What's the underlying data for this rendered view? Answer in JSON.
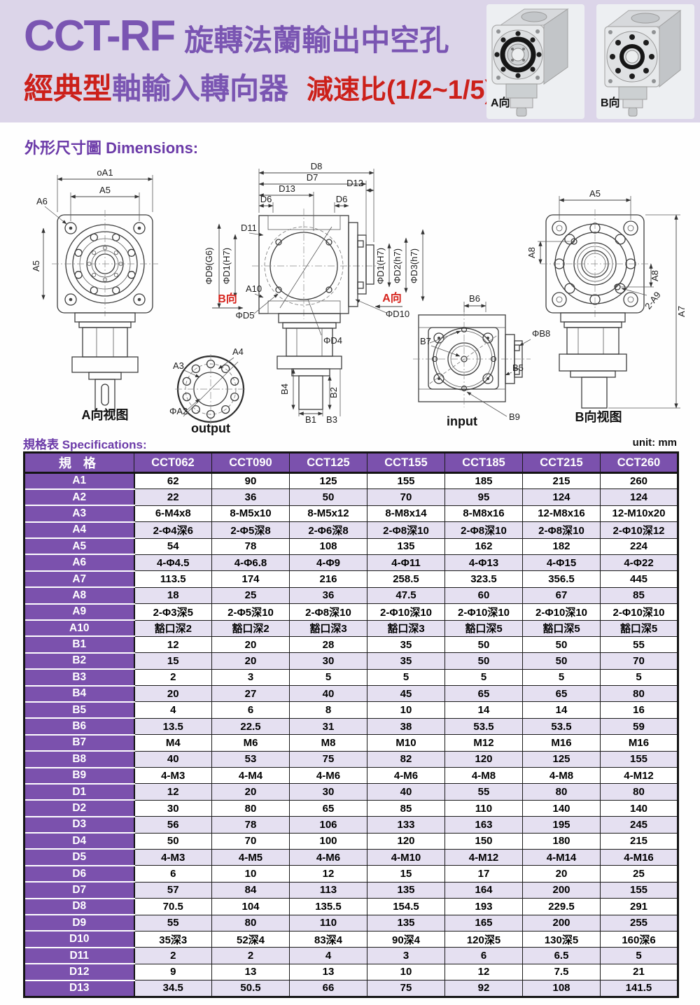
{
  "colors": {
    "band_bg": "#dcd5e9",
    "purple": "#7a55b2",
    "red": "#cc201a",
    "table_header": "#7b51ad",
    "row_alt": "#e5e0f1"
  },
  "header": {
    "title_model": "CCT-RF",
    "title_rest": "旋轉法蘭輸出中空孔",
    "line2_red1": "經典型",
    "line2_purple": "軸輸入轉向器",
    "line2_red2": "減速比(1/2~1/5)",
    "photo_a_label": "A向",
    "photo_b_label": "B向"
  },
  "dimensions_section": {
    "title": "外形尺寸圖 Dimensions:"
  },
  "drawing_labels": {
    "view_a": {
      "dim_a1": "oA1",
      "dim_a5_top": "A5",
      "dim_a6": "A6",
      "dim_a5_left": "A5",
      "caption": "A向视图"
    },
    "output_view": {
      "a3": "A3",
      "a4": "A4",
      "a2": "ΦA2",
      "caption": "output"
    },
    "top_view": {
      "d8": "D8",
      "d7": "D7",
      "d13": "D13",
      "d6_left": "D6",
      "d6_right": "D6",
      "d12": "D12",
      "d11": "D11",
      "d9": "ΦD9(G6)",
      "d1_left": "ΦD1(H7)",
      "b_dir": "B向",
      "a10": "A10",
      "d5": "ΦD5",
      "d10": "ΦD10",
      "d4": "ΦD4",
      "a_dir": "A向",
      "d1_right": "ΦD1(H7)",
      "d2_right": "ΦD2(h7)",
      "d3_right": "ΦD3(h7)",
      "b4": "B4",
      "b2": "B2",
      "b1": "B1",
      "b3": "B3"
    },
    "input_view": {
      "b6": "B6",
      "b7": "B7",
      "b8": "ΦB8",
      "b5": "B5",
      "b9": "B9",
      "caption": "input"
    },
    "view_b": {
      "a5": "A5",
      "a8_left": "A8",
      "a8_right": "A8",
      "a9": "2-A9",
      "a7": "A7",
      "caption": "B向视图"
    }
  },
  "spec_section": {
    "title": "規格表 Specifications:",
    "unit": "unit: mm"
  },
  "spec_table": {
    "header": [
      "規  格",
      "CCT062",
      "CCT090",
      "CCT125",
      "CCT155",
      "CCT185",
      "CCT215",
      "CCT260"
    ],
    "rows": [
      {
        "label": "A1",
        "values": [
          "62",
          "90",
          "125",
          "155",
          "185",
          "215",
          "260"
        ]
      },
      {
        "label": "A2",
        "values": [
          "22",
          "36",
          "50",
          "70",
          "95",
          "124",
          "124"
        ]
      },
      {
        "label": "A3",
        "values": [
          "6-M4x8",
          "8-M5x10",
          "8-M5x12",
          "8-M8x14",
          "8-M8x16",
          "12-M8x16",
          "12-M10x20"
        ]
      },
      {
        "label": "A4",
        "values": [
          "2-Φ4深6",
          "2-Φ5深8",
          "2-Φ6深8",
          "2-Φ8深10",
          "2-Φ8深10",
          "2-Φ8深10",
          "2-Φ10深12"
        ]
      },
      {
        "label": "A5",
        "values": [
          "54",
          "78",
          "108",
          "135",
          "162",
          "182",
          "224"
        ]
      },
      {
        "label": "A6",
        "values": [
          "4-Φ4.5",
          "4-Φ6.8",
          "4-Φ9",
          "4-Φ11",
          "4-Φ13",
          "4-Φ15",
          "4-Φ22"
        ]
      },
      {
        "label": "A7",
        "values": [
          "113.5",
          "174",
          "216",
          "258.5",
          "323.5",
          "356.5",
          "445"
        ]
      },
      {
        "label": "A8",
        "values": [
          "18",
          "25",
          "36",
          "47.5",
          "60",
          "67",
          "85"
        ]
      },
      {
        "label": "A9",
        "values": [
          "2-Φ3深5",
          "2-Φ5深10",
          "2-Φ8深10",
          "2-Φ10深10",
          "2-Φ10深10",
          "2-Φ10深10",
          "2-Φ10深10"
        ]
      },
      {
        "label": "A10",
        "values": [
          "豁口深2",
          "豁口深2",
          "豁口深3",
          "豁口深3",
          "豁口深5",
          "豁口深5",
          "豁口深5"
        ]
      },
      {
        "label": "B1",
        "values": [
          "12",
          "20",
          "28",
          "35",
          "50",
          "50",
          "55"
        ]
      },
      {
        "label": "B2",
        "values": [
          "15",
          "20",
          "30",
          "35",
          "50",
          "50",
          "70"
        ]
      },
      {
        "label": "B3",
        "values": [
          "2",
          "3",
          "5",
          "5",
          "5",
          "5",
          "5"
        ]
      },
      {
        "label": "B4",
        "values": [
          "20",
          "27",
          "40",
          "45",
          "65",
          "65",
          "80"
        ]
      },
      {
        "label": "B5",
        "values": [
          "4",
          "6",
          "8",
          "10",
          "14",
          "14",
          "16"
        ]
      },
      {
        "label": "B6",
        "values": [
          "13.5",
          "22.5",
          "31",
          "38",
          "53.5",
          "53.5",
          "59"
        ]
      },
      {
        "label": "B7",
        "values": [
          "M4",
          "M6",
          "M8",
          "M10",
          "M12",
          "M16",
          "M16"
        ]
      },
      {
        "label": "B8",
        "values": [
          "40",
          "53",
          "75",
          "82",
          "120",
          "125",
          "155"
        ]
      },
      {
        "label": "B9",
        "values": [
          "4-M3",
          "4-M4",
          "4-M6",
          "4-M6",
          "4-M8",
          "4-M8",
          "4-M12"
        ]
      },
      {
        "label": "D1",
        "values": [
          "12",
          "20",
          "30",
          "40",
          "55",
          "80",
          "80"
        ]
      },
      {
        "label": "D2",
        "values": [
          "30",
          "80",
          "65",
          "85",
          "110",
          "140",
          "140"
        ]
      },
      {
        "label": "D3",
        "values": [
          "56",
          "78",
          "106",
          "133",
          "163",
          "195",
          "245"
        ]
      },
      {
        "label": "D4",
        "values": [
          "50",
          "70",
          "100",
          "120",
          "150",
          "180",
          "215"
        ]
      },
      {
        "label": "D5",
        "values": [
          "4-M3",
          "4-M5",
          "4-M6",
          "4-M10",
          "4-M12",
          "4-M14",
          "4-M16"
        ]
      },
      {
        "label": "D6",
        "values": [
          "6",
          "10",
          "12",
          "15",
          "17",
          "20",
          "25"
        ]
      },
      {
        "label": "D7",
        "values": [
          "57",
          "84",
          "113",
          "135",
          "164",
          "200",
          "155"
        ]
      },
      {
        "label": "D8",
        "values": [
          "70.5",
          "104",
          "135.5",
          "154.5",
          "193",
          "229.5",
          "291"
        ]
      },
      {
        "label": "D9",
        "values": [
          "55",
          "80",
          "110",
          "135",
          "165",
          "200",
          "255"
        ]
      },
      {
        "label": "D10",
        "values": [
          "35深3",
          "52深4",
          "83深4",
          "90深4",
          "120深5",
          "130深5",
          "160深6"
        ]
      },
      {
        "label": "D11",
        "values": [
          "2",
          "2",
          "4",
          "3",
          "6",
          "6.5",
          "5"
        ]
      },
      {
        "label": "D12",
        "values": [
          "9",
          "13",
          "13",
          "10",
          "12",
          "7.5",
          "21"
        ]
      },
      {
        "label": "D13",
        "values": [
          "34.5",
          "50.5",
          "66",
          "75",
          "92",
          "108",
          "141.5"
        ]
      }
    ]
  }
}
